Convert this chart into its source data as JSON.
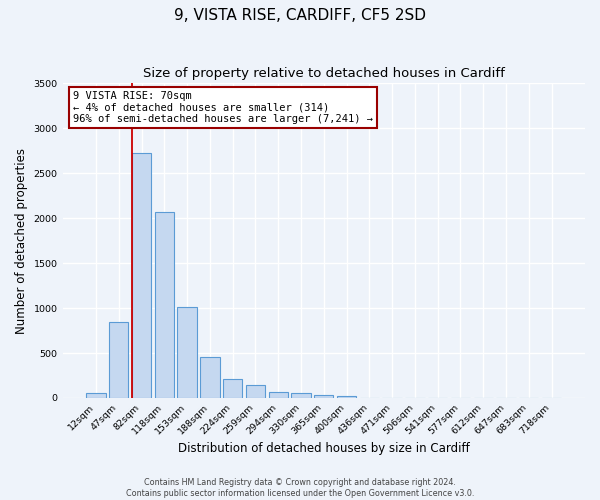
{
  "title": "9, VISTA RISE, CARDIFF, CF5 2SD",
  "subtitle": "Size of property relative to detached houses in Cardiff",
  "xlabel": "Distribution of detached houses by size in Cardiff",
  "ylabel": "Number of detached properties",
  "bar_labels": [
    "12sqm",
    "47sqm",
    "82sqm",
    "118sqm",
    "153sqm",
    "188sqm",
    "224sqm",
    "259sqm",
    "294sqm",
    "330sqm",
    "365sqm",
    "400sqm",
    "436sqm",
    "471sqm",
    "506sqm",
    "541sqm",
    "577sqm",
    "612sqm",
    "647sqm",
    "683sqm",
    "718sqm"
  ],
  "bar_values": [
    60,
    850,
    2720,
    2070,
    1010,
    455,
    215,
    140,
    65,
    50,
    30,
    20,
    0,
    0,
    0,
    0,
    0,
    0,
    0,
    0,
    0
  ],
  "bar_color": "#c5d8f0",
  "bar_edge_color": "#5b9bd5",
  "ylim": [
    0,
    3500
  ],
  "yticks": [
    0,
    500,
    1000,
    1500,
    2000,
    2500,
    3000,
    3500
  ],
  "red_line_index": 2,
  "annotation_title": "9 VISTA RISE: 70sqm",
  "annotation_line1": "← 4% of detached houses are smaller (314)",
  "annotation_line2": "96% of semi-detached houses are larger (7,241) →",
  "footer1": "Contains HM Land Registry data © Crown copyright and database right 2024.",
  "footer2": "Contains public sector information licensed under the Open Government Licence v3.0.",
  "bg_color": "#eef3fa",
  "plot_bg_color": "#eef3fa",
  "grid_color": "#ffffff",
  "title_fontsize": 11,
  "subtitle_fontsize": 9.5
}
